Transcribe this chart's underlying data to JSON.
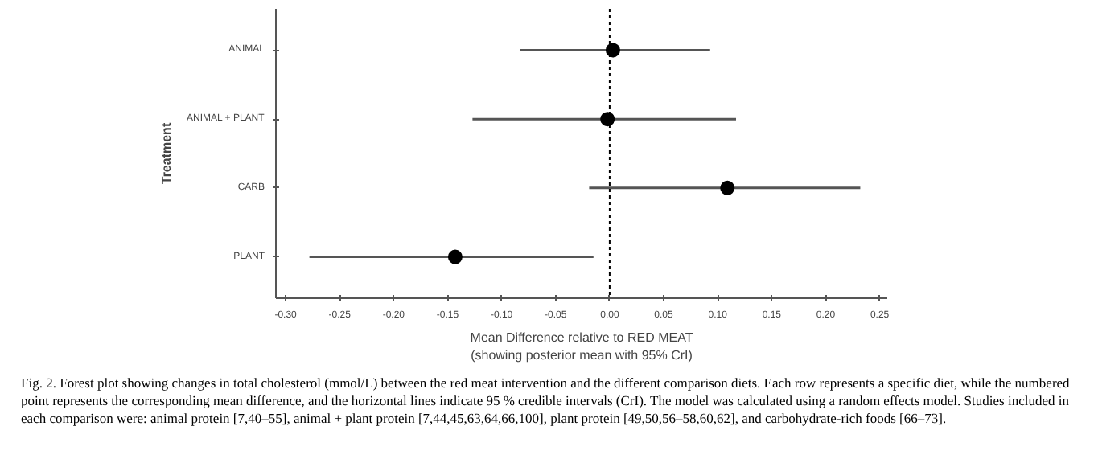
{
  "chart_data": {
    "type": "scatter",
    "orientation": "horizontal",
    "xlabel": "Mean Difference relative to RED MEAT\n(showing posterior mean with 95% CrI)",
    "ylabel": "Treatment",
    "categories": [
      "ANIMAL",
      "ANIMAL + PLANT",
      "CARB",
      "PLANT"
    ],
    "values": [
      0.003,
      -0.002,
      0.109,
      -0.143
    ],
    "errors": [
      [
        -0.083,
        0.093
      ],
      [
        -0.127,
        0.117
      ],
      [
        -0.019,
        0.232
      ],
      [
        -0.278,
        -0.015
      ]
    ],
    "color": "#000000",
    "marker": "circle",
    "grid": false,
    "xlim": [
      -0.309,
      0.257
    ],
    "xticks": [
      {
        "value": -0.3,
        "label": "-0.30"
      },
      {
        "value": -0.25,
        "label": "-0.25"
      },
      {
        "value": -0.2,
        "label": "-0.20"
      },
      {
        "value": -0.15,
        "label": "-0.15"
      },
      {
        "value": -0.1,
        "label": "-0.10"
      },
      {
        "value": -0.05,
        "label": "-0.05"
      },
      {
        "value": 0,
        "label": "0.00"
      },
      {
        "value": 0.05,
        "label": "0.05"
      },
      {
        "value": 0.1,
        "label": "0.10"
      },
      {
        "value": 0.15,
        "label": "0.15"
      },
      {
        "value": 0.2,
        "label": "0.20"
      },
      {
        "value": 0.25,
        "label": "0.25"
      }
    ],
    "ref_lines": [
      {
        "axis": "x",
        "value": 0,
        "line_style": "dashed",
        "color": "#000000"
      }
    ],
    "annotations": [
      "Fig. 2. Forest plot showing changes in total cholesterol (mmol/L) between the red meat intervention and the different comparison diets. Each row represents a specific diet, while the numbered point represents the corresponding mean difference, and the horizontal lines indicate 95 % credible intervals (CrI). The model was calculated using a random effects model. Studies included in each comparison were: animal protein [7,40–55], animal + plant protein [7,44,45,63,64,66,100], plant protein [49,50,56–58,60,62], and carbohydrate-rich foods [66–73]."
    ]
  }
}
